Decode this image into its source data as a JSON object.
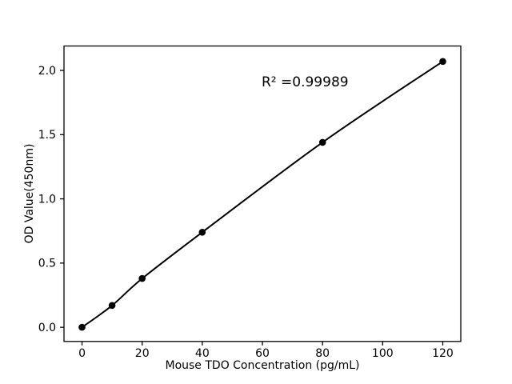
{
  "chart_data": {
    "type": "line",
    "title": "",
    "xlabel": "Mouse TDO Concentration (pg/mL)",
    "ylabel": "OD Value(450nm)",
    "annotation": "R² =0.99989",
    "x": [
      0,
      10,
      20,
      40,
      80,
      120
    ],
    "y": [
      0.0,
      0.17,
      0.38,
      0.74,
      1.44,
      2.07
    ],
    "xlim": [
      -6,
      126
    ],
    "ylim": [
      -0.11,
      2.19
    ],
    "xticks": [
      0,
      20,
      40,
      60,
      80,
      100,
      120
    ],
    "xtick_labels": [
      "0",
      "20",
      "40",
      "60",
      "80",
      "100",
      "120"
    ],
    "yticks": [
      0.0,
      0.5,
      1.0,
      1.5,
      2.0
    ],
    "ytick_labels": [
      "0.0",
      "0.5",
      "1.0",
      "1.5",
      "2.0"
    ],
    "grid": false,
    "legend": null,
    "line_color": "#000000",
    "marker_color": "#000000",
    "axes_color": "#000000",
    "background": "#ffffff"
  }
}
